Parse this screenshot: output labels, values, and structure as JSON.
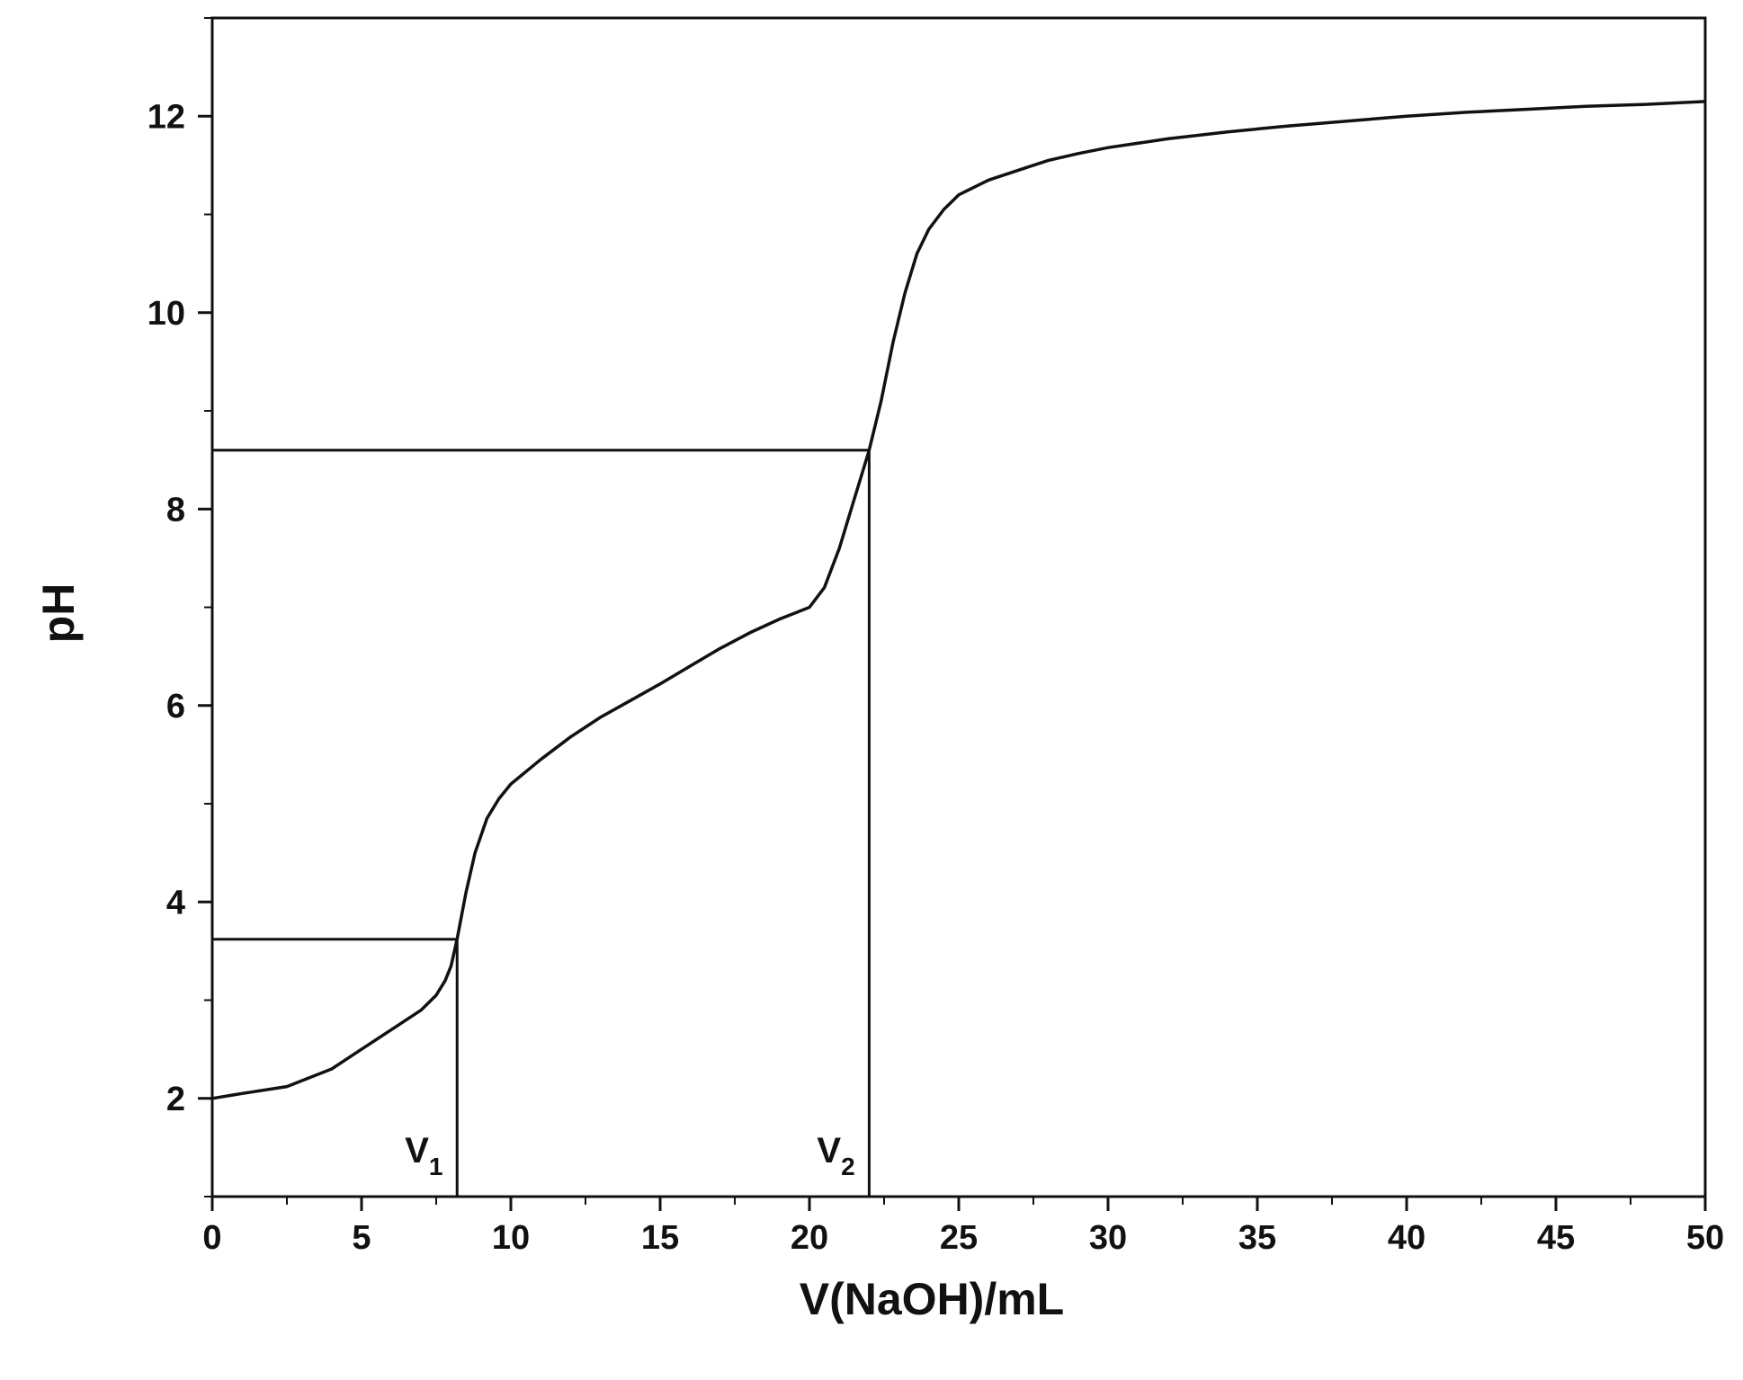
{
  "chart_data": {
    "type": "line",
    "xlabel": "V(NaOH)/mL",
    "ylabel": "pH",
    "xlim": [
      0,
      50
    ],
    "ylim": [
      1,
      13
    ],
    "x_major_ticks": [
      0,
      5,
      10,
      15,
      20,
      25,
      30,
      35,
      40,
      45,
      50
    ],
    "x_minor_step": 2.5,
    "y_major_ticks": [
      2,
      4,
      6,
      8,
      10,
      12
    ],
    "y_minor_step": 1,
    "grid": false,
    "legend": "none",
    "line_color": "#111111",
    "series": [
      {
        "points": [
          [
            0,
            2.0
          ],
          [
            1,
            2.05
          ],
          [
            2.5,
            2.12
          ],
          [
            4,
            2.3
          ],
          [
            5,
            2.5
          ],
          [
            6,
            2.7
          ],
          [
            7,
            2.9
          ],
          [
            7.5,
            3.05
          ],
          [
            7.8,
            3.2
          ],
          [
            8.0,
            3.35
          ],
          [
            8.2,
            3.62
          ],
          [
            8.5,
            4.1
          ],
          [
            8.8,
            4.5
          ],
          [
            9.2,
            4.85
          ],
          [
            9.6,
            5.05
          ],
          [
            10,
            5.2
          ],
          [
            11,
            5.45
          ],
          [
            12,
            5.68
          ],
          [
            13,
            5.88
          ],
          [
            14,
            6.05
          ],
          [
            15,
            6.22
          ],
          [
            16,
            6.4
          ],
          [
            17,
            6.58
          ],
          [
            18,
            6.74
          ],
          [
            19,
            6.88
          ],
          [
            20,
            7.0
          ],
          [
            20.5,
            7.2
          ],
          [
            21,
            7.6
          ],
          [
            21.5,
            8.1
          ],
          [
            21.8,
            8.4
          ],
          [
            22,
            8.6
          ],
          [
            22.4,
            9.1
          ],
          [
            22.8,
            9.7
          ],
          [
            23.2,
            10.2
          ],
          [
            23.6,
            10.6
          ],
          [
            24,
            10.85
          ],
          [
            24.5,
            11.05
          ],
          [
            25,
            11.2
          ],
          [
            26,
            11.35
          ],
          [
            27,
            11.45
          ],
          [
            28,
            11.55
          ],
          [
            29,
            11.62
          ],
          [
            30,
            11.68
          ],
          [
            32,
            11.77
          ],
          [
            34,
            11.84
          ],
          [
            36,
            11.9
          ],
          [
            38,
            11.95
          ],
          [
            40,
            12.0
          ],
          [
            42,
            12.04
          ],
          [
            44,
            12.07
          ],
          [
            46,
            12.1
          ],
          [
            48,
            12.12
          ],
          [
            50,
            12.15
          ]
        ]
      }
    ],
    "annotations": [
      {
        "label": "V",
        "sub": "1",
        "x": 8.2,
        "y": 3.62
      },
      {
        "label": "V",
        "sub": "2",
        "x": 22.0,
        "y": 8.6
      }
    ]
  }
}
